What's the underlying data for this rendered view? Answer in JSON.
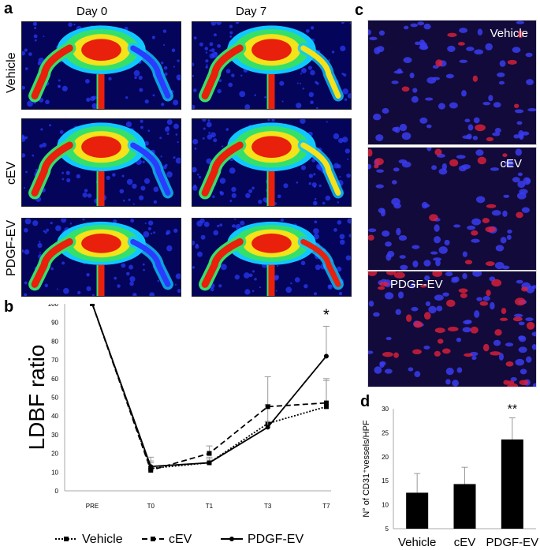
{
  "panels": {
    "a": {
      "letter": "a",
      "columns": [
        "Day 0",
        "Day 7"
      ],
      "rows": [
        "Vehicle",
        "cEV",
        "PDGF-EV"
      ]
    },
    "b": {
      "letter": "b"
    },
    "c": {
      "letter": "c",
      "images": [
        "Vehicle",
        "cEV",
        "PDGF-EV"
      ]
    },
    "d": {
      "letter": "d"
    }
  },
  "chart_data": [
    {
      "type": "line",
      "ylabel": "LDBF ratio",
      "xlabel": "",
      "categories": [
        "PRE",
        "T0",
        "T1",
        "T3",
        "T7"
      ],
      "ylim": [
        0,
        100
      ],
      "yticks": [
        0,
        10,
        20,
        30,
        40,
        50,
        60,
        70,
        80,
        90,
        100
      ],
      "series": [
        {
          "name": "Vehicle",
          "style": "dotted",
          "marker": "square",
          "values": [
            100,
            12,
            15,
            36,
            45
          ],
          "errors": [
            0,
            3,
            3,
            10,
            15
          ]
        },
        {
          "name": "cEV",
          "style": "dashed",
          "marker": "square",
          "values": [
            100,
            11,
            20,
            45,
            47
          ],
          "errors": [
            0,
            5,
            4,
            16,
            12
          ]
        },
        {
          "name": "PDGF-EV",
          "style": "solid",
          "marker": "circle",
          "values": [
            100,
            13,
            15,
            34,
            72
          ],
          "errors": [
            0,
            5,
            2,
            3,
            16
          ]
        }
      ],
      "annotations": [
        {
          "category": "T7",
          "text": "*"
        }
      ],
      "legend_position": "bottom"
    },
    {
      "type": "bar",
      "ylabel": "N° of CD31⁺vessels/HPF",
      "categories": [
        "Vehicle",
        "cEV",
        "PDGF-EV"
      ],
      "values": [
        12.5,
        14.3,
        23.6
      ],
      "errors": [
        4,
        3.5,
        4.5
      ],
      "ylim": [
        5,
        30
      ],
      "yticks": [
        5,
        10,
        15,
        20,
        25,
        30
      ],
      "annotations": [
        {
          "category": "PDGF-EV",
          "text": "**"
        }
      ]
    }
  ]
}
